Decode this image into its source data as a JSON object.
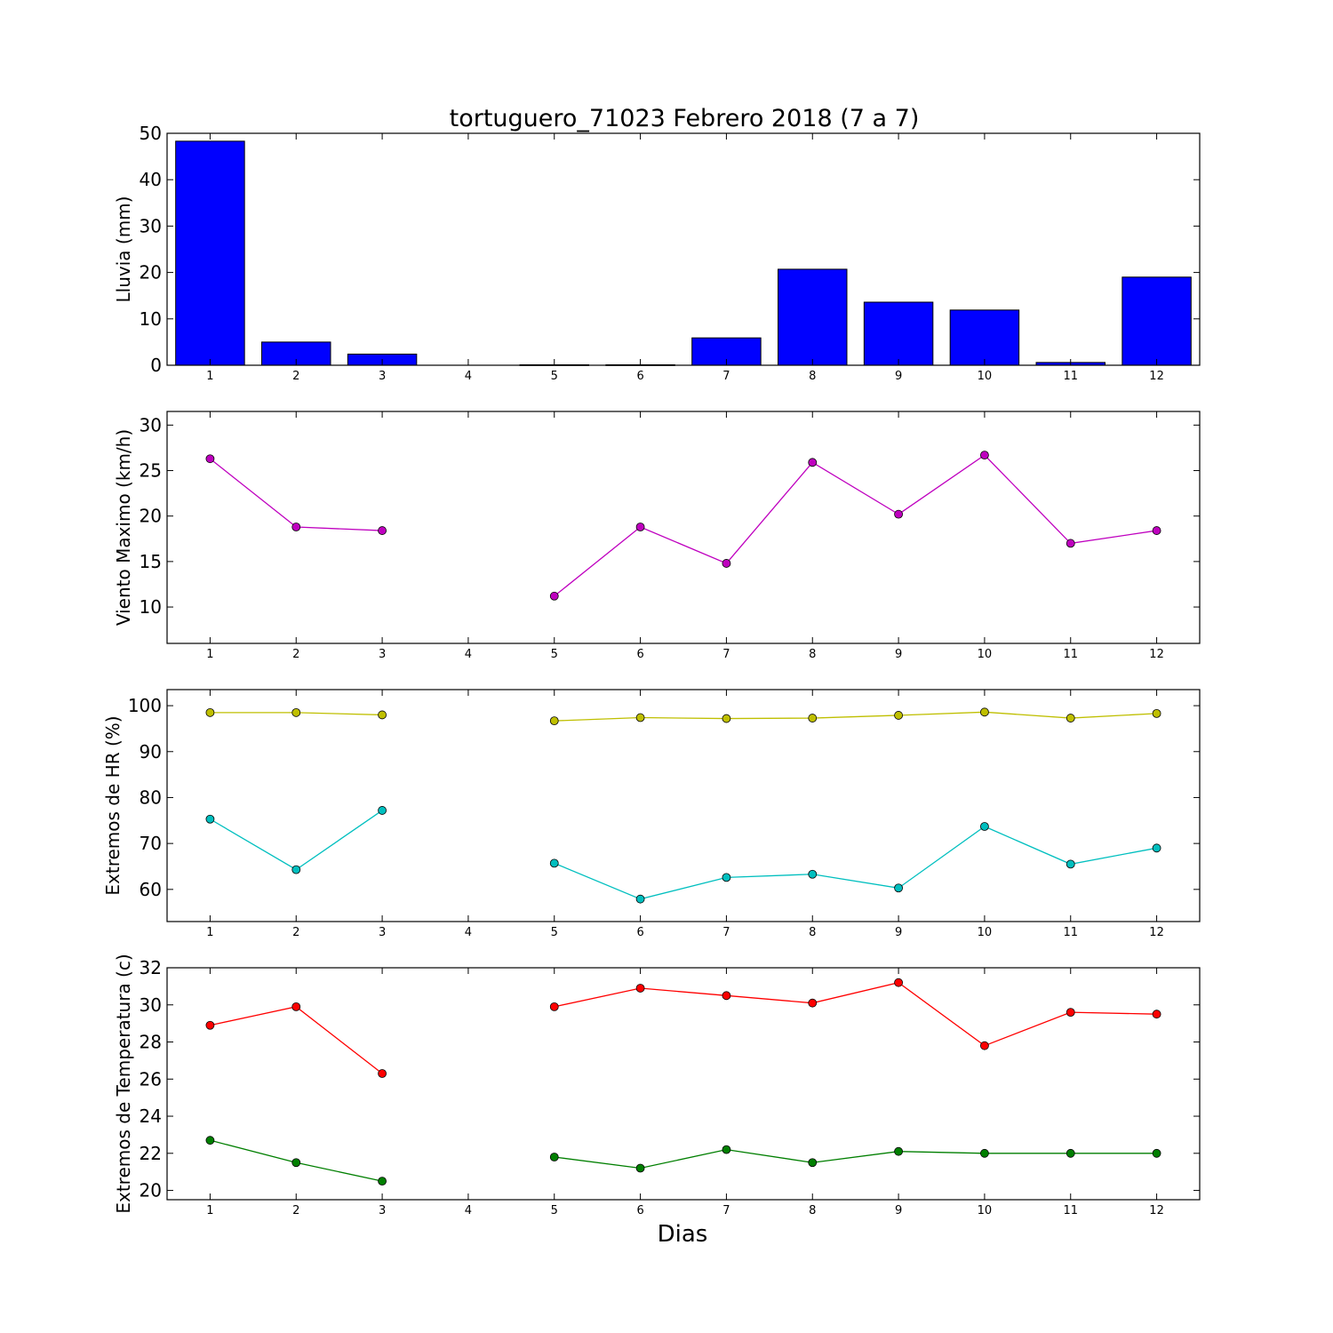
{
  "title": "tortuguero_71023 Febrero 2018  (7 a 7)",
  "xlabel": "Dias",
  "chart_data": [
    {
      "type": "bar",
      "ylabel": "Lluvia (mm)",
      "x": [
        1,
        2,
        3,
        4,
        5,
        6,
        7,
        8,
        9,
        10,
        11,
        12
      ],
      "xticks": [
        "1",
        "2",
        "3",
        "4",
        "5",
        "6",
        "7",
        "8",
        "9",
        "10",
        "11",
        "12"
      ],
      "xlim": [
        0.5,
        12.5
      ],
      "ylim": [
        0,
        50
      ],
      "yticks": [
        0,
        10,
        20,
        30,
        40,
        50
      ],
      "series": [
        {
          "color": "#0000ff",
          "values": [
            48.3,
            5.0,
            2.4,
            0,
            0.1,
            0.1,
            5.9,
            20.7,
            13.6,
            11.9,
            0.6,
            19.0
          ]
        }
      ]
    },
    {
      "type": "line",
      "ylabel": "Viento Maximo (km/h)",
      "x": [
        1,
        2,
        3,
        4,
        5,
        6,
        7,
        8,
        9,
        10,
        11,
        12
      ],
      "xticks": [
        "1",
        "2",
        "3",
        "4",
        "5",
        "6",
        "7",
        "8",
        "9",
        "10",
        "11",
        "12"
      ],
      "xlim": [
        0.5,
        12.5
      ],
      "ylim": [
        6,
        31.5
      ],
      "yticks": [
        10,
        15,
        20,
        25,
        30
      ],
      "series": [
        {
          "color": "#bf00bf",
          "values": [
            26.3,
            18.8,
            18.4,
            null,
            11.2,
            18.8,
            14.8,
            25.9,
            20.2,
            26.7,
            17.0,
            18.4
          ]
        }
      ]
    },
    {
      "type": "line",
      "ylabel": "Extremos de HR (%)",
      "x": [
        1,
        2,
        3,
        4,
        5,
        6,
        7,
        8,
        9,
        10,
        11,
        12
      ],
      "xticks": [
        "1",
        "2",
        "3",
        "4",
        "5",
        "6",
        "7",
        "8",
        "9",
        "10",
        "11",
        "12"
      ],
      "xlim": [
        0.5,
        12.5
      ],
      "ylim": [
        53,
        103.5
      ],
      "yticks": [
        60,
        70,
        80,
        90,
        100
      ],
      "series": [
        {
          "color": "#bfbf00",
          "values": [
            98.5,
            98.5,
            98.0,
            null,
            96.7,
            97.4,
            97.2,
            97.3,
            97.9,
            98.6,
            97.3,
            98.3
          ]
        },
        {
          "color": "#00bfbf",
          "values": [
            75.3,
            64.3,
            77.2,
            null,
            65.7,
            57.9,
            62.6,
            63.3,
            60.3,
            73.7,
            65.5,
            69.0
          ]
        }
      ]
    },
    {
      "type": "line",
      "ylabel": "Extremos de Temperatura (c)",
      "x": [
        1,
        2,
        3,
        4,
        5,
        6,
        7,
        8,
        9,
        10,
        11,
        12
      ],
      "xticks": [
        "1",
        "2",
        "3",
        "4",
        "5",
        "6",
        "7",
        "8",
        "9",
        "10",
        "11",
        "12"
      ],
      "xlim": [
        0.5,
        12.5
      ],
      "ylim": [
        19.5,
        32
      ],
      "yticks": [
        20,
        22,
        24,
        26,
        28,
        30,
        32
      ],
      "series": [
        {
          "color": "#ff0000",
          "values": [
            28.9,
            29.9,
            26.3,
            null,
            29.9,
            30.9,
            30.5,
            30.1,
            31.2,
            27.8,
            29.6,
            29.5
          ]
        },
        {
          "color": "#007f00",
          "values": [
            22.7,
            21.5,
            20.5,
            null,
            21.8,
            21.2,
            22.2,
            21.5,
            22.1,
            22.0,
            22.0,
            22.0
          ]
        }
      ]
    }
  ]
}
